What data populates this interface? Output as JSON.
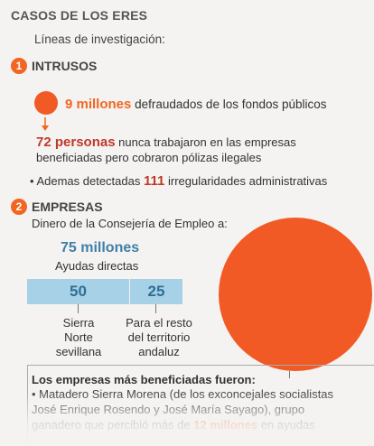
{
  "header": {
    "title": "CASOS DE LOS ERES",
    "subtitle": "Líneas de investigación:"
  },
  "section1": {
    "number": "1",
    "heading": "INTRUSOS",
    "fact1_highlight": "9 millones",
    "fact1_rest": "defraudados de los fondos públicos",
    "fact2_highlight": "72 personas",
    "fact2_rest_line1": "nunca trabajaron en las empresas",
    "fact2_rest_line2": "beneficiadas pero cobraron pólizas ilegales",
    "fact3_prefix": "• Ademas detectadas",
    "fact3_highlight": "111",
    "fact3_rest": "irregularidades administrativas"
  },
  "section2": {
    "number": "2",
    "heading": "EMPRESAS",
    "intro": "Dinero de la Consejería de Empleo a:",
    "total_value": "75 millones",
    "total_label": "Ayudas directas",
    "split": [
      {
        "value": "50",
        "label_lines": [
          "Sierra",
          "Norte",
          "sevillana"
        ]
      },
      {
        "value": "25",
        "label_lines": [
          "Para el resto",
          "del territorio",
          "andaluz"
        ]
      }
    ],
    "bottom_heading": "Los empresas más beneficiadas fueron:",
    "bottom_line1": "• Matadero Sierra Morena (de los exconcejales socialistas",
    "bottom_line2": "José Enrique Rosendo y José María Sayago), grupo",
    "bottom_line3_a": "ganadero que percibió más de",
    "bottom_line3_highlight": "12 millones",
    "bottom_line3_b": "en ayudas"
  },
  "colors": {
    "accent": "#f26522",
    "circle": "#f15a24",
    "bar": "#a7d1e6",
    "bar_text": "#2f6f96"
  }
}
